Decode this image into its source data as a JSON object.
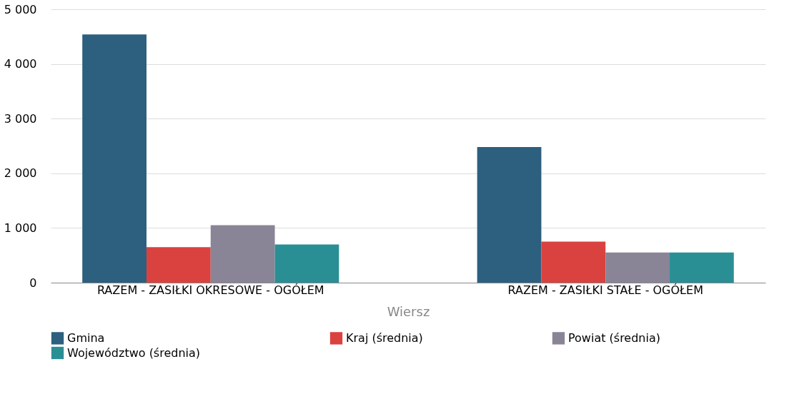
{
  "chart_data": {
    "type": "bar",
    "xlabel": "Wiersz",
    "categories": [
      "RAZEM -  ZASIŁKI OKRESOWE - OGÓŁEM",
      "RAZEM -  ZASIŁKI STAŁE - OGÓŁEM"
    ],
    "series": [
      {
        "name": "Gmina",
        "color": "#2d5f7e",
        "values": [
          4540,
          2480
        ]
      },
      {
        "name": "Kraj (średnia)",
        "color": "#d9423f",
        "values": [
          650,
          750
        ]
      },
      {
        "name": "Powiat (średnia)",
        "color": "#8a8497",
        "values": [
          1050,
          550
        ]
      },
      {
        "name": "Województwo (średnia)",
        "color": "#2a8f94",
        "values": [
          700,
          550
        ]
      }
    ],
    "ylim": [
      0,
      5000
    ],
    "yticks": [
      {
        "value": 0,
        "label": "0"
      },
      {
        "value": 1000,
        "label": "1 000"
      },
      {
        "value": 2000,
        "label": "2 000"
      },
      {
        "value": 3000,
        "label": "3 000"
      },
      {
        "value": 4000,
        "label": "4 000"
      },
      {
        "value": 5000,
        "label": "5 000"
      }
    ],
    "grid": "y",
    "legend": "bottom"
  }
}
